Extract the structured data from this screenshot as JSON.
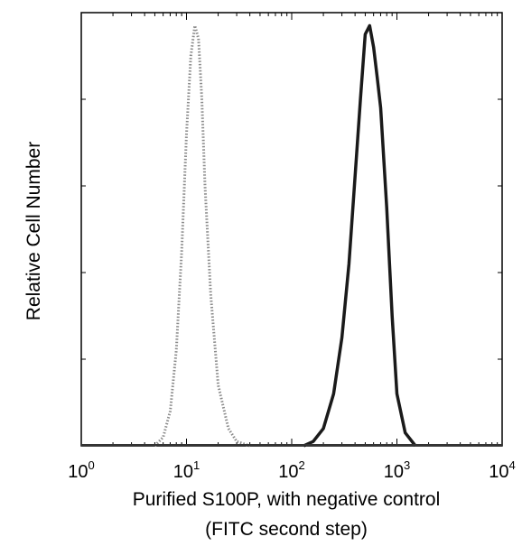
{
  "chart_data": {
    "type": "area",
    "title": "",
    "xlabel_line1": "Purified S100P, with negative control",
    "xlabel_line2": "(FITC second step)",
    "ylabel": "Relative Cell Number",
    "x_scale": "log",
    "xlim": [
      1,
      10000
    ],
    "ylim": [
      0,
      100
    ],
    "x_ticks": [
      {
        "base": "10",
        "exp": "0",
        "value": 1
      },
      {
        "base": "10",
        "exp": "1",
        "value": 10
      },
      {
        "base": "10",
        "exp": "2",
        "value": 100
      },
      {
        "base": "10",
        "exp": "3",
        "value": 1000
      },
      {
        "base": "10",
        "exp": "4",
        "value": 10000
      }
    ],
    "grid": false,
    "legend": "none",
    "series": [
      {
        "style": "dotted",
        "color": "#8a8a8a",
        "x": [
          5,
          6,
          7,
          8,
          9,
          10,
          11,
          12,
          13,
          14,
          15,
          17,
          20,
          25,
          30,
          40
        ],
        "y": [
          0,
          2,
          8,
          22,
          45,
          72,
          90,
          97,
          94,
          80,
          60,
          35,
          14,
          4,
          1,
          0
        ]
      },
      {
        "style": "solid",
        "color": "#1a1a1a",
        "x": [
          130,
          160,
          200,
          250,
          300,
          350,
          400,
          450,
          500,
          550,
          600,
          650,
          700,
          800,
          900,
          1000,
          1200,
          1500
        ],
        "y": [
          0,
          1,
          4,
          12,
          25,
          42,
          62,
          80,
          95,
          97,
          92,
          85,
          78,
          55,
          30,
          12,
          3,
          0
        ]
      }
    ]
  }
}
